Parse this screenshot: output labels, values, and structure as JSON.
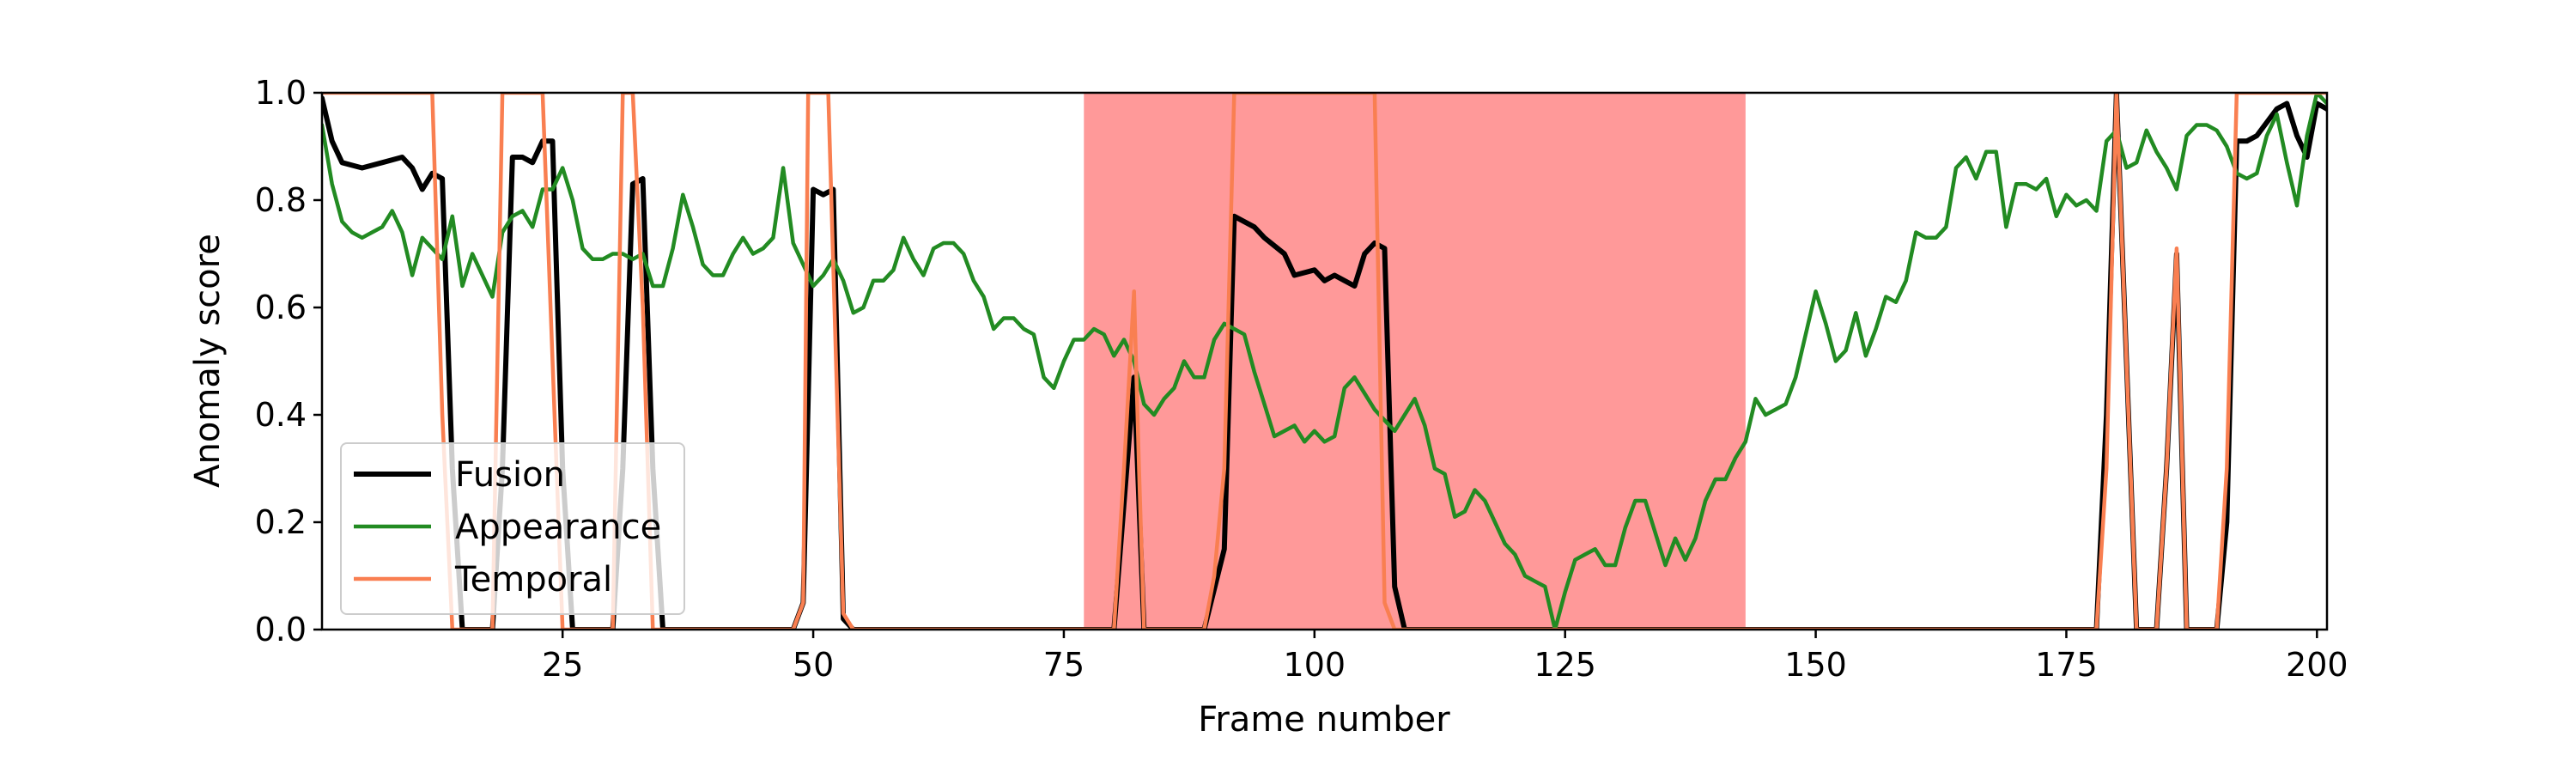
{
  "chart_data": {
    "type": "line",
    "xlabel": "Frame number",
    "ylabel": "Anomaly score",
    "xlim": [
      1,
      201
    ],
    "ylim": [
      0,
      1
    ],
    "xticks": [
      25,
      50,
      75,
      100,
      125,
      150,
      175,
      200
    ],
    "yticks": [
      0.0,
      0.2,
      0.4,
      0.6,
      0.8,
      1.0
    ],
    "ytick_labels": [
      "0.0",
      "0.2",
      "0.4",
      "0.6",
      "0.8",
      "1.0"
    ],
    "grid": false,
    "legend_placement": "lower-left",
    "shaded_regions": [
      {
        "x0": 77,
        "x1": 143,
        "color": "#ff9999"
      }
    ],
    "series": [
      {
        "name": "Fusion",
        "color": "#000000",
        "points": [
          [
            1,
            0.99
          ],
          [
            2,
            0.91
          ],
          [
            3,
            0.87
          ],
          [
            5,
            0.86
          ],
          [
            7,
            0.87
          ],
          [
            9,
            0.88
          ],
          [
            10,
            0.86
          ],
          [
            11,
            0.82
          ],
          [
            12,
            0.85
          ],
          [
            13,
            0.84
          ],
          [
            14,
            0.3
          ],
          [
            15,
            0
          ],
          [
            18,
            0
          ],
          [
            19,
            0.3
          ],
          [
            20,
            0.88
          ],
          [
            21,
            0.88
          ],
          [
            22,
            0.87
          ],
          [
            23,
            0.91
          ],
          [
            24,
            0.91
          ],
          [
            25,
            0.3
          ],
          [
            26,
            0
          ],
          [
            30,
            0
          ],
          [
            31,
            0.3
          ],
          [
            32,
            0.83
          ],
          [
            33,
            0.84
          ],
          [
            34,
            0.3
          ],
          [
            35,
            0
          ],
          [
            48,
            0
          ],
          [
            49,
            0.05
          ],
          [
            50,
            0.82
          ],
          [
            51,
            0.81
          ],
          [
            52,
            0.82
          ],
          [
            53,
            0.02
          ],
          [
            54,
            0
          ],
          [
            80,
            0
          ],
          [
            82,
            0.47
          ],
          [
            83,
            0
          ],
          [
            89,
            0
          ],
          [
            91,
            0.15
          ],
          [
            92,
            0.77
          ],
          [
            94,
            0.75
          ],
          [
            95,
            0.73
          ],
          [
            97,
            0.7
          ],
          [
            98,
            0.66
          ],
          [
            100,
            0.67
          ],
          [
            101,
            0.65
          ],
          [
            102,
            0.66
          ],
          [
            103,
            0.65
          ],
          [
            104,
            0.64
          ],
          [
            105,
            0.7
          ],
          [
            106,
            0.72
          ],
          [
            107,
            0.71
          ],
          [
            108,
            0.08
          ],
          [
            109,
            0
          ],
          [
            178,
            0
          ],
          [
            179,
            0.4
          ],
          [
            180,
            1.0
          ],
          [
            181,
            0.5
          ],
          [
            182,
            0
          ],
          [
            184,
            0
          ],
          [
            185,
            0.3
          ],
          [
            186,
            0.7
          ],
          [
            187,
            0
          ],
          [
            189,
            0
          ],
          [
            190,
            0
          ],
          [
            191,
            0.2
          ],
          [
            192,
            0.91
          ],
          [
            193,
            0.91
          ],
          [
            194,
            0.92
          ],
          [
            196,
            0.97
          ],
          [
            197,
            0.98
          ],
          [
            198,
            0.92
          ],
          [
            199,
            0.88
          ],
          [
            200,
            0.98
          ],
          [
            201,
            0.97
          ],
          [
            202,
            0.95
          ]
        ]
      },
      {
        "name": "Appearance",
        "color": "#228b22",
        "points": [
          [
            1,
            0.94
          ],
          [
            2,
            0.83
          ],
          [
            3,
            0.76
          ],
          [
            4,
            0.74
          ],
          [
            5,
            0.73
          ],
          [
            6,
            0.74
          ],
          [
            7,
            0.75
          ],
          [
            8,
            0.78
          ],
          [
            9,
            0.74
          ],
          [
            10,
            0.66
          ],
          [
            11,
            0.73
          ],
          [
            12,
            0.71
          ],
          [
            13,
            0.69
          ],
          [
            14,
            0.77
          ],
          [
            15,
            0.64
          ],
          [
            16,
            0.7
          ],
          [
            17,
            0.66
          ],
          [
            18,
            0.62
          ],
          [
            19,
            0.74
          ],
          [
            20,
            0.77
          ],
          [
            21,
            0.78
          ],
          [
            22,
            0.75
          ],
          [
            23,
            0.82
          ],
          [
            24,
            0.82
          ],
          [
            25,
            0.86
          ],
          [
            26,
            0.8
          ],
          [
            27,
            0.71
          ],
          [
            28,
            0.69
          ],
          [
            29,
            0.69
          ],
          [
            30,
            0.7
          ],
          [
            31,
            0.7
          ],
          [
            32,
            0.69
          ],
          [
            33,
            0.7
          ],
          [
            34,
            0.64
          ],
          [
            35,
            0.64
          ],
          [
            36,
            0.71
          ],
          [
            37,
            0.81
          ],
          [
            38,
            0.75
          ],
          [
            39,
            0.68
          ],
          [
            40,
            0.66
          ],
          [
            41,
            0.66
          ],
          [
            42,
            0.7
          ],
          [
            43,
            0.73
          ],
          [
            44,
            0.7
          ],
          [
            45,
            0.71
          ],
          [
            46,
            0.73
          ],
          [
            47,
            0.86
          ],
          [
            48,
            0.72
          ],
          [
            49,
            0.68
          ],
          [
            50,
            0.64
          ],
          [
            51,
            0.66
          ],
          [
            52,
            0.69
          ],
          [
            53,
            0.65
          ],
          [
            54,
            0.59
          ],
          [
            55,
            0.6
          ],
          [
            56,
            0.65
          ],
          [
            57,
            0.65
          ],
          [
            58,
            0.67
          ],
          [
            59,
            0.73
          ],
          [
            60,
            0.69
          ],
          [
            61,
            0.66
          ],
          [
            62,
            0.71
          ],
          [
            63,
            0.72
          ],
          [
            64,
            0.72
          ],
          [
            65,
            0.7
          ],
          [
            66,
            0.65
          ],
          [
            67,
            0.62
          ],
          [
            68,
            0.56
          ],
          [
            69,
            0.58
          ],
          [
            70,
            0.58
          ],
          [
            71,
            0.56
          ],
          [
            72,
            0.55
          ],
          [
            73,
            0.47
          ],
          [
            74,
            0.45
          ],
          [
            75,
            0.5
          ],
          [
            76,
            0.54
          ],
          [
            77,
            0.54
          ],
          [
            78,
            0.56
          ],
          [
            79,
            0.55
          ],
          [
            80,
            0.51
          ],
          [
            81,
            0.54
          ],
          [
            82,
            0.5
          ],
          [
            83,
            0.42
          ],
          [
            84,
            0.4
          ],
          [
            85,
            0.43
          ],
          [
            86,
            0.45
          ],
          [
            87,
            0.5
          ],
          [
            88,
            0.47
          ],
          [
            89,
            0.47
          ],
          [
            90,
            0.54
          ],
          [
            91,
            0.57
          ],
          [
            92,
            0.56
          ],
          [
            93,
            0.55
          ],
          [
            94,
            0.48
          ],
          [
            95,
            0.42
          ],
          [
            96,
            0.36
          ],
          [
            97,
            0.37
          ],
          [
            98,
            0.38
          ],
          [
            99,
            0.35
          ],
          [
            100,
            0.37
          ],
          [
            101,
            0.35
          ],
          [
            102,
            0.36
          ],
          [
            103,
            0.45
          ],
          [
            104,
            0.47
          ],
          [
            105,
            0.44
          ],
          [
            106,
            0.41
          ],
          [
            107,
            0.39
          ],
          [
            108,
            0.37
          ],
          [
            109,
            0.4
          ],
          [
            110,
            0.43
          ],
          [
            111,
            0.38
          ],
          [
            112,
            0.3
          ],
          [
            113,
            0.29
          ],
          [
            114,
            0.21
          ],
          [
            115,
            0.22
          ],
          [
            116,
            0.26
          ],
          [
            117,
            0.24
          ],
          [
            118,
            0.2
          ],
          [
            119,
            0.16
          ],
          [
            120,
            0.14
          ],
          [
            121,
            0.1
          ],
          [
            122,
            0.09
          ],
          [
            123,
            0.08
          ],
          [
            124,
            0.0
          ],
          [
            125,
            0.07
          ],
          [
            126,
            0.13
          ],
          [
            127,
            0.14
          ],
          [
            128,
            0.15
          ],
          [
            129,
            0.12
          ],
          [
            130,
            0.12
          ],
          [
            131,
            0.19
          ],
          [
            132,
            0.24
          ],
          [
            133,
            0.24
          ],
          [
            134,
            0.18
          ],
          [
            135,
            0.12
          ],
          [
            136,
            0.17
          ],
          [
            137,
            0.13
          ],
          [
            138,
            0.17
          ],
          [
            139,
            0.24
          ],
          [
            140,
            0.28
          ],
          [
            141,
            0.28
          ],
          [
            142,
            0.32
          ],
          [
            143,
            0.35
          ],
          [
            144,
            0.43
          ],
          [
            145,
            0.4
          ],
          [
            146,
            0.41
          ],
          [
            147,
            0.42
          ],
          [
            148,
            0.47
          ],
          [
            149,
            0.55
          ],
          [
            150,
            0.63
          ],
          [
            151,
            0.57
          ],
          [
            152,
            0.5
          ],
          [
            153,
            0.52
          ],
          [
            154,
            0.59
          ],
          [
            155,
            0.51
          ],
          [
            156,
            0.56
          ],
          [
            157,
            0.62
          ],
          [
            158,
            0.61
          ],
          [
            159,
            0.65
          ],
          [
            160,
            0.74
          ],
          [
            161,
            0.73
          ],
          [
            162,
            0.73
          ],
          [
            163,
            0.75
          ],
          [
            164,
            0.86
          ],
          [
            165,
            0.88
          ],
          [
            166,
            0.84
          ],
          [
            167,
            0.89
          ],
          [
            168,
            0.89
          ],
          [
            169,
            0.75
          ],
          [
            170,
            0.83
          ],
          [
            171,
            0.83
          ],
          [
            172,
            0.82
          ],
          [
            173,
            0.84
          ],
          [
            174,
            0.77
          ],
          [
            175,
            0.81
          ],
          [
            176,
            0.79
          ],
          [
            177,
            0.8
          ],
          [
            178,
            0.78
          ],
          [
            179,
            0.91
          ],
          [
            180,
            0.93
          ],
          [
            181,
            0.86
          ],
          [
            182,
            0.87
          ],
          [
            183,
            0.93
          ],
          [
            184,
            0.89
          ],
          [
            185,
            0.86
          ],
          [
            186,
            0.82
          ],
          [
            187,
            0.92
          ],
          [
            188,
            0.94
          ],
          [
            189,
            0.94
          ],
          [
            190,
            0.93
          ],
          [
            191,
            0.9
          ],
          [
            192,
            0.85
          ],
          [
            193,
            0.84
          ],
          [
            194,
            0.85
          ],
          [
            195,
            0.92
          ],
          [
            196,
            0.96
          ],
          [
            197,
            0.87
          ],
          [
            198,
            0.79
          ],
          [
            199,
            0.92
          ],
          [
            200,
            1.0
          ],
          [
            201,
            0.98
          ],
          [
            202,
            0.92
          ]
        ]
      },
      {
        "name": "Temporal",
        "color": "#f97f51",
        "points": [
          [
            1,
            1.0
          ],
          [
            12,
            1.0
          ],
          [
            13,
            0.4
          ],
          [
            14,
            0
          ],
          [
            18,
            0
          ],
          [
            19,
            1.0
          ],
          [
            20,
            1.0
          ],
          [
            23,
            1.0
          ],
          [
            24,
            0.5
          ],
          [
            25,
            0
          ],
          [
            30,
            0
          ],
          [
            31,
            1.0
          ],
          [
            32,
            1.0
          ],
          [
            33,
            0.6
          ],
          [
            34,
            0
          ],
          [
            48,
            0
          ],
          [
            49,
            0.05
          ],
          [
            49.5,
            1.0
          ],
          [
            51.5,
            1.0
          ],
          [
            53,
            0.03
          ],
          [
            54,
            0
          ],
          [
            80,
            0
          ],
          [
            81,
            0.3
          ],
          [
            82,
            0.63
          ],
          [
            82.5,
            0.3
          ],
          [
            83,
            0
          ],
          [
            89,
            0
          ],
          [
            90,
            0.1
          ],
          [
            91,
            0.3
          ],
          [
            92,
            1.0
          ],
          [
            106,
            1.0
          ],
          [
            107,
            0.05
          ],
          [
            108,
            0
          ],
          [
            178,
            0
          ],
          [
            179,
            0.3
          ],
          [
            180,
            1.0
          ],
          [
            181,
            0.5
          ],
          [
            182,
            0
          ],
          [
            184,
            0
          ],
          [
            185,
            0.3
          ],
          [
            186,
            0.71
          ],
          [
            187,
            0
          ],
          [
            189,
            0
          ],
          [
            190,
            0
          ],
          [
            191,
            0.3
          ],
          [
            192,
            1.0
          ],
          [
            202,
            1.0
          ]
        ]
      }
    ]
  }
}
